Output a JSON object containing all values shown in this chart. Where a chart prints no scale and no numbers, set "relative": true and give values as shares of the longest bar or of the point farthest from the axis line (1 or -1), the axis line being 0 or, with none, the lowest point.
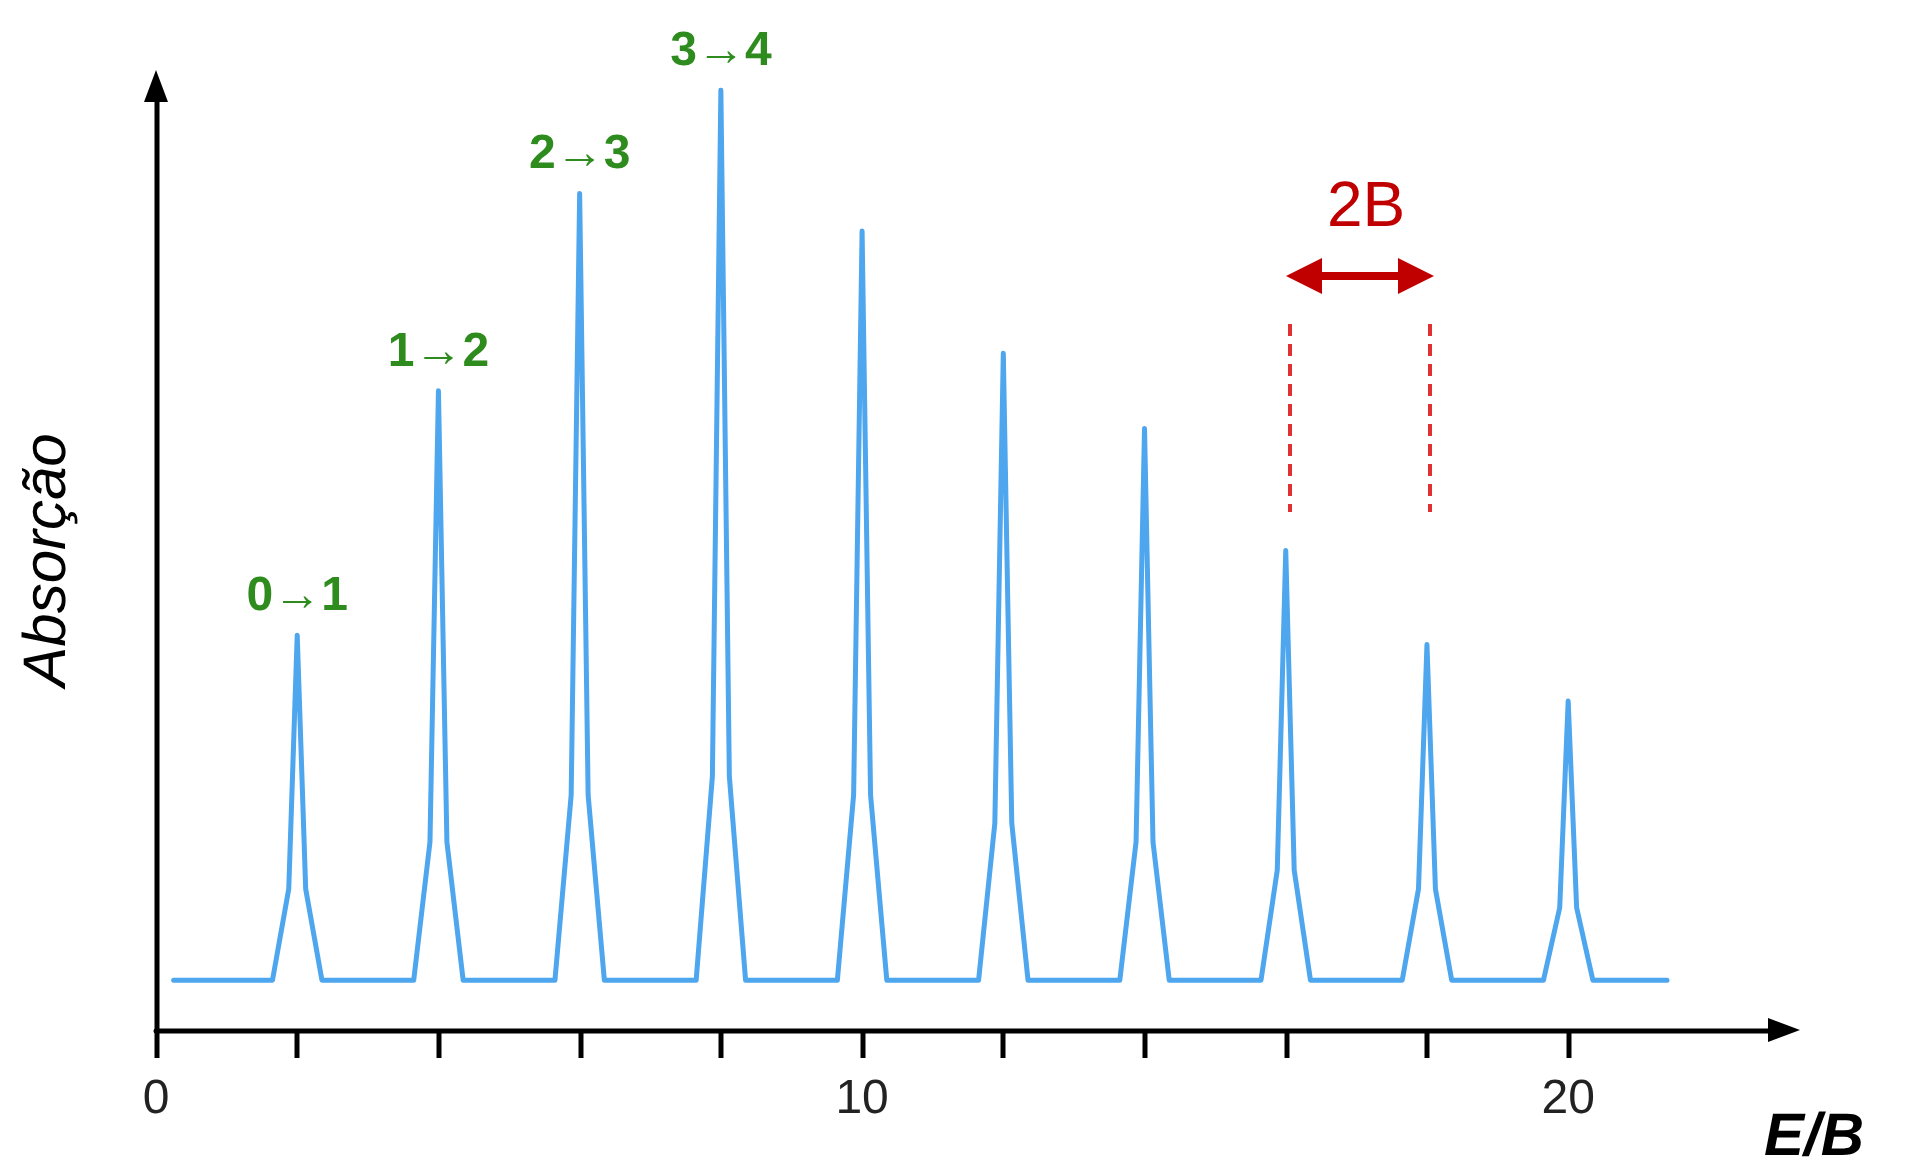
{
  "chart_data": {
    "type": "line",
    "relative": true,
    "xlabel": "E/B",
    "ylabel": "Absorção",
    "color": "#4da6ee",
    "marker": "none",
    "line_style": "solid",
    "xlim": [
      0,
      23
    ],
    "xticks": [
      {
        "value": 0,
        "label": "0"
      },
      {
        "value": 2,
        "label": null
      },
      {
        "value": 4,
        "label": null
      },
      {
        "value": 6,
        "label": null
      },
      {
        "value": 8,
        "label": null
      },
      {
        "value": 10,
        "label": "10"
      },
      {
        "value": 12,
        "label": null
      },
      {
        "value": 14,
        "label": null
      },
      {
        "value": 16,
        "label": null
      },
      {
        "value": 18,
        "label": null
      },
      {
        "value": 20,
        "label": "20"
      }
    ],
    "x": [
      0.25,
      1.65,
      1.88,
      2,
      2.12,
      2.35,
      3.65,
      3.88,
      4,
      4.12,
      4.35,
      5.65,
      5.88,
      6,
      6.12,
      6.35,
      7.65,
      7.88,
      8,
      8.12,
      8.35,
      9.65,
      9.88,
      10,
      10.12,
      10.35,
      11.65,
      11.88,
      12,
      12.12,
      12.35,
      13.65,
      13.88,
      14,
      14.12,
      14.35,
      15.65,
      15.88,
      16,
      16.12,
      16.35,
      17.65,
      17.88,
      18,
      18.12,
      18.35,
      19.65,
      19.88,
      20,
      20.12,
      20.35,
      21.4
    ],
    "values": [
      0.053,
      0.053,
      0.15,
      0.42,
      0.15,
      0.053,
      0.053,
      0.2,
      0.68,
      0.2,
      0.053,
      0.053,
      0.25,
      0.89,
      0.25,
      0.053,
      0.053,
      0.27,
      1,
      0.27,
      0.053,
      0.053,
      0.25,
      0.85,
      0.25,
      0.053,
      0.053,
      0.22,
      0.72,
      0.22,
      0.053,
      0.053,
      0.2,
      0.64,
      0.2,
      0.053,
      0.053,
      0.17,
      0.51,
      0.17,
      0.053,
      0.053,
      0.15,
      0.41,
      0.15,
      0.053,
      0.053,
      0.13,
      0.35,
      0.13,
      0.053,
      0.053
    ],
    "annotations": [
      {
        "text": "0→1",
        "x": 2,
        "y": 0.42
      },
      {
        "text": "1→2",
        "x": 4,
        "y": 0.68
      },
      {
        "text": "2→3",
        "x": 6,
        "y": 0.89
      },
      {
        "text": "3→4",
        "x": 8,
        "y": 1
      },
      "2B"
    ]
  }
}
